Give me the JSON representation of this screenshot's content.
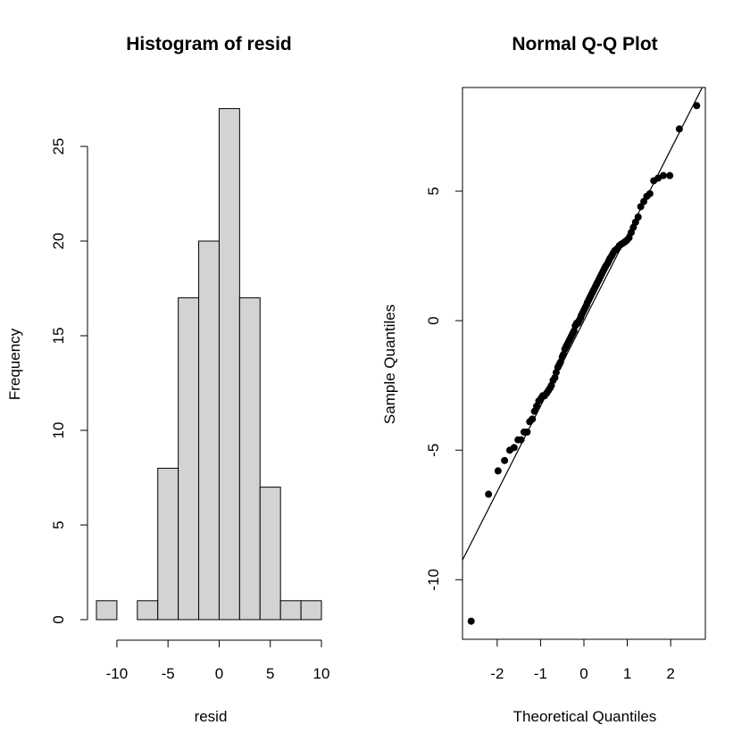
{
  "chart_data": [
    {
      "type": "bar",
      "subtype": "histogram",
      "title": "Histogram of resid",
      "xlabel": "resid",
      "ylabel": "Frequency",
      "bins": [
        {
          "from": -12,
          "to": -10,
          "count": 1
        },
        {
          "from": -10,
          "to": -8,
          "count": 0
        },
        {
          "from": -8,
          "to": -6,
          "count": 1
        },
        {
          "from": -6,
          "to": -4,
          "count": 8
        },
        {
          "from": -4,
          "to": -2,
          "count": 17
        },
        {
          "from": -2,
          "to": 0,
          "count": 20
        },
        {
          "from": 0,
          "to": 2,
          "count": 27
        },
        {
          "from": 2,
          "to": 4,
          "count": 17
        },
        {
          "from": 4,
          "to": 6,
          "count": 7
        },
        {
          "from": 6,
          "to": 8,
          "count": 1
        },
        {
          "from": 8,
          "to": 10,
          "count": 1
        }
      ],
      "xlim": [
        -12,
        10
      ],
      "ylim": [
        0,
        27
      ],
      "x_ticks": [
        "-10",
        "-5",
        "0",
        "5",
        "10"
      ],
      "y_ticks": [
        "0",
        "5",
        "10",
        "15",
        "20",
        "25"
      ],
      "grid": false
    },
    {
      "type": "scatter",
      "title": "Normal Q-Q Plot",
      "xlabel": "Theoretical Quantiles",
      "ylabel": "Sample Quantiles",
      "xlim": [
        -2.8,
        2.8
      ],
      "ylim": [
        -12.3,
        9.0
      ],
      "x_ticks": [
        "-2",
        "-1",
        "0",
        "1",
        "2"
      ],
      "y_ticks": [
        "-10",
        "-5",
        "0",
        "5"
      ],
      "reference_line": {
        "intercept": 0.0,
        "slope": 3.3
      },
      "grid": false,
      "points": [
        [
          -2.6,
          -11.6
        ],
        [
          -2.2,
          -6.7
        ],
        [
          -1.98,
          -5.8
        ],
        [
          -1.83,
          -5.4
        ],
        [
          -1.71,
          -5.0
        ],
        [
          -1.61,
          -4.9
        ],
        [
          -1.52,
          -4.6
        ],
        [
          -1.45,
          -4.6
        ],
        [
          -1.38,
          -4.3
        ],
        [
          -1.31,
          -4.3
        ],
        [
          -1.25,
          -3.9
        ],
        [
          -1.19,
          -3.8
        ],
        [
          -1.14,
          -3.5
        ],
        [
          -1.09,
          -3.3
        ],
        [
          -1.04,
          -3.1
        ],
        [
          -0.99,
          -3.0
        ],
        [
          -0.95,
          -2.9
        ],
        [
          -0.91,
          -2.9
        ],
        [
          -0.86,
          -2.8
        ],
        [
          -0.82,
          -2.7
        ],
        [
          -0.78,
          -2.6
        ],
        [
          -0.75,
          -2.5
        ],
        [
          -0.71,
          -2.3
        ],
        [
          -0.67,
          -2.2
        ],
        [
          -0.64,
          -2.0
        ],
        [
          -0.6,
          -1.8
        ],
        [
          -0.57,
          -1.7
        ],
        [
          -0.54,
          -1.6
        ],
        [
          -0.5,
          -1.4
        ],
        [
          -0.47,
          -1.3
        ],
        [
          -0.44,
          -1.1
        ],
        [
          -0.41,
          -1.0
        ],
        [
          -0.38,
          -0.9
        ],
        [
          -0.35,
          -0.8
        ],
        [
          -0.32,
          -0.7
        ],
        [
          -0.29,
          -0.6
        ],
        [
          -0.26,
          -0.5
        ],
        [
          -0.23,
          -0.4
        ],
        [
          -0.2,
          -0.2
        ],
        [
          -0.17,
          -0.1
        ],
        [
          -0.14,
          -0.1
        ],
        [
          -0.11,
          0.0
        ],
        [
          -0.08,
          0.1
        ],
        [
          -0.06,
          0.2
        ],
        [
          -0.03,
          0.3
        ],
        [
          0.0,
          0.4
        ],
        [
          0.03,
          0.5
        ],
        [
          0.06,
          0.6
        ],
        [
          0.08,
          0.7
        ],
        [
          0.11,
          0.8
        ],
        [
          0.14,
          0.9
        ],
        [
          0.17,
          1.0
        ],
        [
          0.2,
          1.1
        ],
        [
          0.23,
          1.2
        ],
        [
          0.26,
          1.3
        ],
        [
          0.29,
          1.4
        ],
        [
          0.32,
          1.5
        ],
        [
          0.35,
          1.6
        ],
        [
          0.38,
          1.7
        ],
        [
          0.41,
          1.8
        ],
        [
          0.44,
          1.9
        ],
        [
          0.47,
          2.0
        ],
        [
          0.5,
          2.1
        ],
        [
          0.54,
          2.2
        ],
        [
          0.57,
          2.3
        ],
        [
          0.6,
          2.4
        ],
        [
          0.64,
          2.5
        ],
        [
          0.67,
          2.6
        ],
        [
          0.71,
          2.7
        ],
        [
          0.75,
          2.75
        ],
        [
          0.78,
          2.8
        ],
        [
          0.82,
          2.9
        ],
        [
          0.86,
          2.95
        ],
        [
          0.91,
          3.0
        ],
        [
          0.95,
          3.05
        ],
        [
          0.99,
          3.1
        ],
        [
          1.04,
          3.2
        ],
        [
          1.09,
          3.4
        ],
        [
          1.14,
          3.6
        ],
        [
          1.19,
          3.8
        ],
        [
          1.25,
          4.0
        ],
        [
          1.31,
          4.4
        ],
        [
          1.38,
          4.6
        ],
        [
          1.45,
          4.8
        ],
        [
          1.52,
          4.9
        ],
        [
          1.61,
          5.4
        ],
        [
          1.71,
          5.5
        ],
        [
          1.83,
          5.6
        ],
        [
          1.98,
          5.6
        ],
        [
          2.2,
          7.4
        ],
        [
          2.6,
          8.3
        ]
      ]
    }
  ]
}
